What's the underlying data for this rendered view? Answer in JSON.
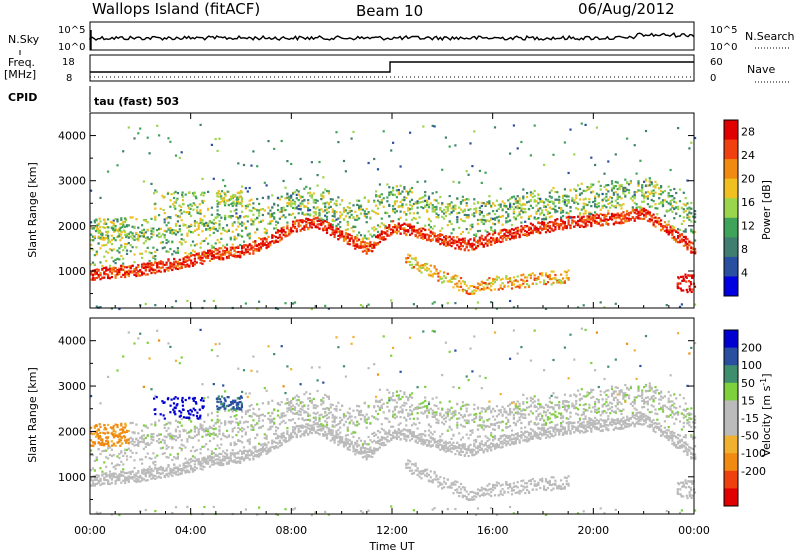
{
  "header": {
    "station": "Wallops Island (fitACF)",
    "beam": "Beam 10",
    "date": "06/Aug/2012"
  },
  "top_panels": {
    "nsky_label": "N.Sky",
    "nsky_ticks": [
      "10^5",
      "10^0"
    ],
    "nsearch_label": "N.Search",
    "nsearch_ticks": [
      "10^5",
      "10^0"
    ],
    "freq_label": "Freq.",
    "freq_unit": "[MHz]",
    "freq_ticks": [
      "18",
      "8"
    ],
    "nave_label": "Nave",
    "nave_ticks": [
      "60",
      "0"
    ],
    "cpid_label": "CPID",
    "cpid_value": "tau (fast) 503"
  },
  "colors": {
    "power_scale": [
      "#0000e0",
      "#2a4fa0",
      "#3f7f6f",
      "#3fa35a",
      "#9ad64b",
      "#f0c020",
      "#f08a10",
      "#f04010",
      "#e00000"
    ],
    "velocity_scale": [
      "#e00000",
      "#f04010",
      "#f08a10",
      "#f0b030",
      "#bbbbbb",
      "#bbbbbb",
      "#7ed03c",
      "#3f8f6f",
      "#2a4fa0",
      "#0000d0"
    ]
  },
  "chart_data": [
    {
      "type": "heatmap",
      "panel": "power",
      "ylabel": "Slant Range [km]",
      "ylim": [
        180,
        4500
      ],
      "yticks": [
        "1000",
        "2000",
        "3000",
        "4000"
      ],
      "x_ticks": [
        "00:00",
        "04:00",
        "08:00",
        "12:00",
        "16:00",
        "20:00",
        "00:00"
      ],
      "colorbar": {
        "label": "Power [dB]",
        "ticks": [
          "28",
          "24",
          "20",
          "16",
          "12",
          "8",
          "4"
        ],
        "range": [
          0,
          30
        ]
      },
      "traces": [
        {
          "name": "main",
          "points": [
            [
              0,
              950
            ],
            [
              2,
              1050
            ],
            [
              4,
              1250
            ],
            [
              5,
              1400
            ],
            [
              6,
              1450
            ],
            [
              7,
              1650
            ],
            [
              8,
              2000
            ],
            [
              9,
              2100
            ],
            [
              10,
              1800
            ],
            [
              11,
              1500
            ],
            [
              12,
              2000
            ],
            [
              13,
              1900
            ],
            [
              14,
              1700
            ],
            [
              15,
              1600
            ],
            [
              16,
              1750
            ],
            [
              17,
              1900
            ],
            [
              18,
              2000
            ],
            [
              19,
              2100
            ],
            [
              20,
              2150
            ],
            [
              21,
              2200
            ],
            [
              22,
              2300
            ],
            [
              23,
              1900
            ],
            [
              24,
              1500
            ]
          ]
        },
        {
          "name": "upper",
          "points": [
            [
              0,
              1900
            ],
            [
              2,
              2000
            ],
            [
              4,
              2100
            ],
            [
              6,
              2300
            ],
            [
              8,
              2600
            ],
            [
              10,
              2200
            ],
            [
              12,
              2700
            ],
            [
              14,
              2500
            ],
            [
              16,
              2300
            ],
            [
              18,
              2400
            ],
            [
              20,
              2500
            ],
            [
              22,
              2900
            ],
            [
              24,
              2300
            ]
          ]
        },
        {
          "name": "lower",
          "points": [
            [
              12.5,
              1300
            ],
            [
              14,
              900
            ],
            [
              15,
              650
            ],
            [
              16,
              750
            ],
            [
              18,
              850
            ],
            [
              19,
              900
            ]
          ]
        }
      ]
    },
    {
      "type": "heatmap",
      "panel": "velocity",
      "ylabel": "Slant Range [km]",
      "ylim": [
        180,
        4500
      ],
      "yticks": [
        "1000",
        "2000",
        "3000",
        "4000"
      ],
      "x_ticks": [
        "00:00",
        "04:00",
        "08:00",
        "12:00",
        "16:00",
        "20:00",
        "00:00"
      ],
      "xlabel": "Time UT",
      "colorbar": {
        "label": "Velocity [m s^-1]",
        "ticks": [
          "200",
          "100",
          "50",
          "15",
          "-15",
          "-50",
          "-100",
          "-200"
        ],
        "range": [
          -250,
          250
        ]
      },
      "features": [
        {
          "name": "blue-patch",
          "hours": [
            2.5,
            4.5
          ],
          "range": [
            2300,
            2800
          ],
          "velocity": 200
        },
        {
          "name": "green-patch",
          "hours": [
            5,
            6
          ],
          "range": [
            2500,
            2800
          ],
          "velocity": 60
        },
        {
          "name": "orange-patch",
          "hours": [
            0,
            1.5
          ],
          "range": [
            1700,
            2200
          ],
          "velocity": -60
        }
      ]
    }
  ]
}
